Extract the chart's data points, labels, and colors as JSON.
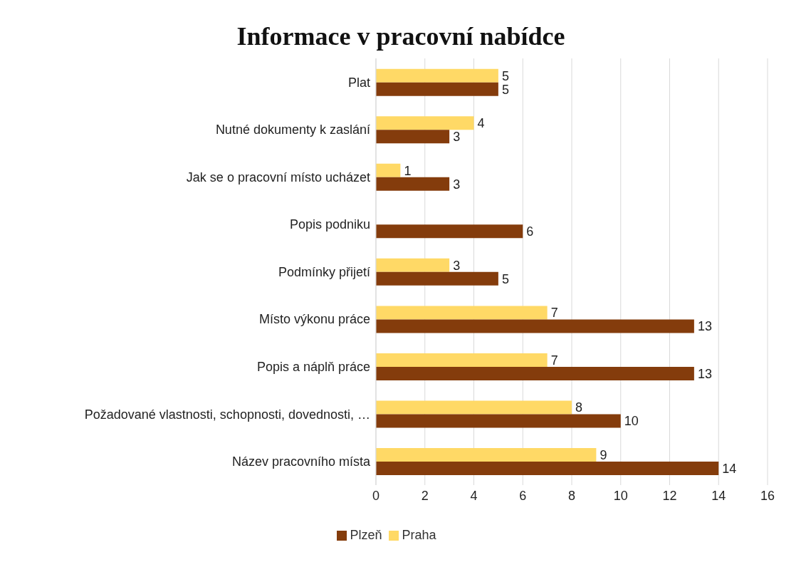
{
  "chart_data": {
    "type": "bar",
    "orientation": "horizontal",
    "title": "Informace v pracovní nabídce",
    "categories": [
      "Plat",
      "Nutné dokumenty k zaslání",
      "Jak se o pracovní místo ucházet",
      "Popis podniku",
      "Podmínky přijetí",
      "Místo výkonu práce",
      "Popis a náplň práce",
      "Požadované vlastnosti, schopnosti, dovednosti, …",
      "Název pracovního místa"
    ],
    "series": [
      {
        "name": "Praha",
        "color": "#ffd966",
        "values": [
          5,
          4,
          1,
          null,
          3,
          7,
          7,
          8,
          9
        ]
      },
      {
        "name": "Plzeň",
        "color": "#843c0c",
        "values": [
          5,
          3,
          3,
          6,
          5,
          13,
          13,
          10,
          14
        ]
      }
    ],
    "xlim": [
      0,
      16
    ],
    "xticks": [
      0,
      2,
      4,
      6,
      8,
      10,
      12,
      14,
      16
    ],
    "grid": "x",
    "legend": "bottom",
    "data_labels": true
  }
}
